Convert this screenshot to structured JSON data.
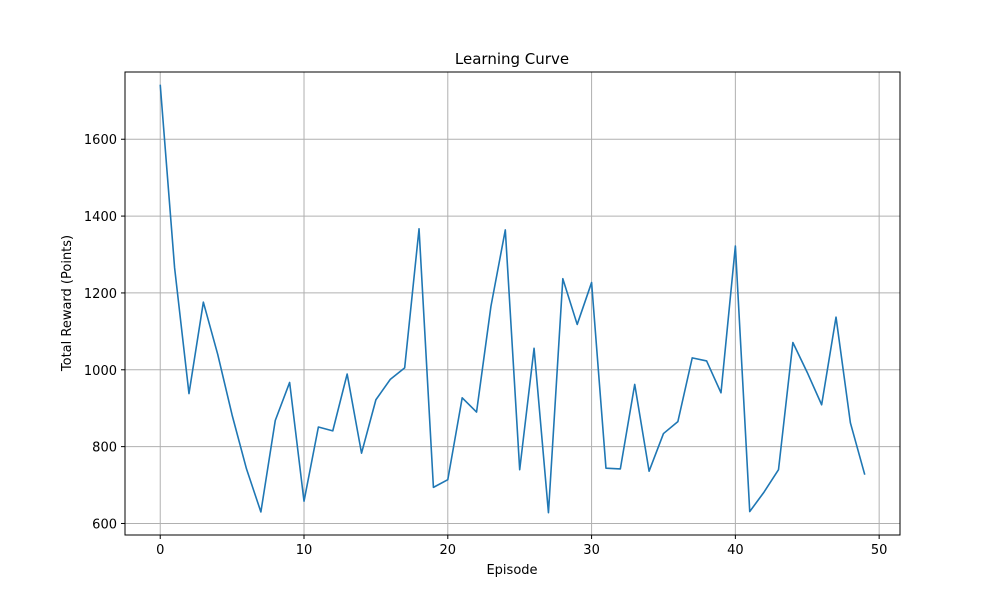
{
  "chart_data": {
    "type": "line",
    "title": "Learning Curve",
    "xlabel": "Episode",
    "ylabel": "Total Reward (Points)",
    "xlim": [
      -2.45,
      51.45
    ],
    "ylim": [
      570,
      1775
    ],
    "xticks": [
      0,
      10,
      20,
      30,
      40,
      50
    ],
    "yticks": [
      600,
      800,
      1000,
      1200,
      1400,
      1600
    ],
    "grid": true,
    "legend": "none",
    "line_color": "#1f77b4",
    "series": [
      {
        "x": [
          0,
          1,
          2,
          3,
          4,
          5,
          6,
          7,
          8,
          9,
          10,
          11,
          12,
          13,
          14,
          15,
          16,
          17,
          18,
          19,
          20,
          21,
          22,
          23,
          24,
          25,
          26,
          27,
          28,
          29,
          30,
          31,
          32,
          33,
          34,
          35,
          36,
          37,
          38,
          39,
          40,
          41,
          42,
          43,
          44,
          45,
          46,
          47,
          48,
          49
        ],
        "values": [
          1742,
          1265,
          938,
          1176,
          1040,
          882,
          742,
          630,
          868,
          967,
          658,
          851,
          841,
          989,
          783,
          922,
          975,
          1005,
          1367,
          694,
          714,
          927,
          890,
          1165,
          1364,
          740,
          1056,
          628,
          1237,
          1118,
          1227,
          744,
          742,
          962,
          736,
          834,
          865,
          1031,
          1023,
          940,
          1322,
          631,
          682,
          740,
          1071,
          993,
          909,
          1137,
          862,
          727
        ]
      }
    ]
  }
}
